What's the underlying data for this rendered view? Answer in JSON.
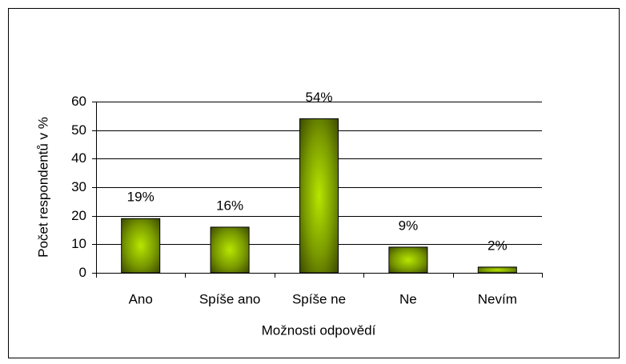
{
  "chart_data": {
    "type": "bar",
    "categories": [
      "Ano",
      "Spíše ano",
      "Spíše ne",
      "Ne",
      "Nevím"
    ],
    "values": [
      19,
      16,
      54,
      9,
      2
    ],
    "value_labels": [
      "19%",
      "16%",
      "54%",
      "9%",
      "2%"
    ],
    "color": "#99cc00",
    "xlabel": "Možnosti odpovědí",
    "ylabel": "Počet respondentů v %",
    "ylim": [
      0,
      60
    ],
    "yticks": [
      0,
      10,
      20,
      30,
      40,
      50,
      60
    ],
    "grid": true
  }
}
